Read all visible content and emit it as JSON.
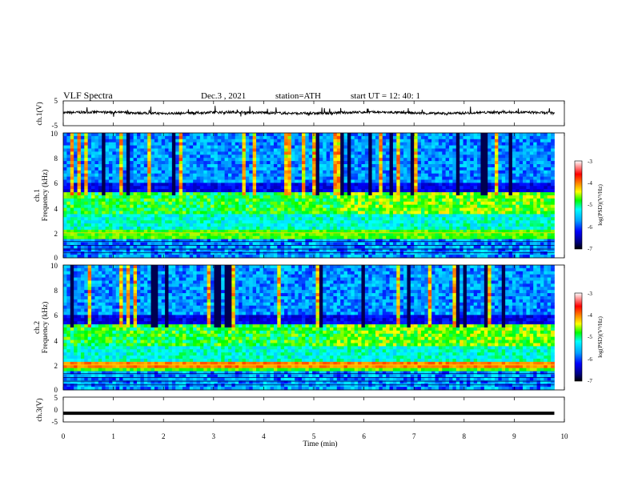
{
  "header": {
    "title": "VLF  Spectra",
    "date": "Dec.3  , 2021",
    "station": "station=ATH",
    "start": "start  UT  =    12: 40: 1"
  },
  "chart_data": [
    {
      "type": "line",
      "name": "ch1-waveform",
      "ylabel": "ch.1(V)",
      "ylim": [
        -5,
        5
      ],
      "yticks": [
        "5",
        "-5"
      ],
      "xlim": [
        0,
        10
      ],
      "baseline_v": 0.2
    },
    {
      "type": "heatmap",
      "name": "ch1-spectrogram",
      "ylabel": "Frequency  (kHz)",
      "channel_label": "ch.1",
      "ylim": [
        0,
        10
      ],
      "yticks": [
        "0",
        "2",
        "4",
        "6",
        "8",
        "10"
      ],
      "xlim": [
        0,
        9.8
      ],
      "colorbar": {
        "label": "log(PSD)(V²/Hz)",
        "range": [
          -7,
          -3
        ],
        "ticks": [
          "-3",
          "-4",
          "-5",
          "-6",
          "-7"
        ]
      }
    },
    {
      "type": "heatmap",
      "name": "ch2-spectrogram",
      "ylabel": "Frequency  (kHz)",
      "channel_label": "ch.2",
      "ylim": [
        0,
        10
      ],
      "yticks": [
        "0",
        "2",
        "4",
        "6",
        "8",
        "10"
      ],
      "xlim": [
        0,
        9.8
      ],
      "colorbar": {
        "label": "log(PSD)(V²/Hz)",
        "range": [
          -7,
          -3
        ],
        "ticks": [
          "-3",
          "-4",
          "-5",
          "-6",
          "-7"
        ]
      }
    },
    {
      "type": "line",
      "name": "ch3-waveform",
      "ylabel": "ch.3(V)",
      "ylim": [
        -5,
        5
      ],
      "yticks": [
        "5",
        "0",
        "-5"
      ],
      "xlim": [
        0,
        10
      ],
      "baseline_v": -1.5
    }
  ],
  "xaxis": {
    "label": "Time  (min)",
    "ticks": [
      "0",
      "1",
      "2",
      "3",
      "4",
      "5",
      "6",
      "7",
      "8",
      "9",
      "10"
    ]
  },
  "colors": {
    "low": "#000080",
    "mid": "#00ff00",
    "high": "#ff0000",
    "max": "#ffffff"
  }
}
